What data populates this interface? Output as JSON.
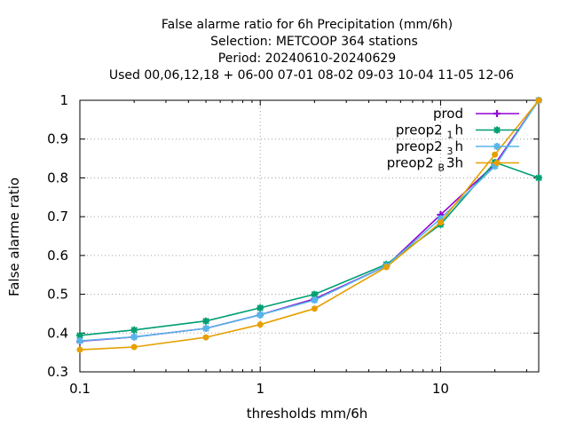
{
  "chart_data": {
    "type": "line",
    "title_lines": [
      "False alarme ratio  for 6h Precipitation (mm/6h)",
      "Selection: METCOOP    364 stations",
      "Period: 20240610-20240629",
      "Used  00,06,12,18 + 06-00 07-01 08-02 09-03 10-04 11-05 12-06"
    ],
    "xlabel": "thresholds mm/6h",
    "ylabel": "False alarme ratio",
    "x_scale": "log",
    "xlim": [
      0.1,
      35
    ],
    "ylim": [
      0.3,
      1.0
    ],
    "x_ticks": [
      0.1,
      1,
      10
    ],
    "x_tick_labels": [
      "0.1",
      "1",
      "10"
    ],
    "y_ticks": [
      0.3,
      0.4,
      0.5,
      0.6,
      0.7,
      0.8,
      0.9,
      1.0
    ],
    "y_tick_labels": [
      "0.3",
      "0.4",
      "0.5",
      "0.6",
      "0.7",
      "0.8",
      "0.9",
      "1"
    ],
    "grid": true,
    "legend_position": "top-right",
    "series": [
      {
        "name": "prod",
        "legend_text": "prod",
        "legend_sub": "",
        "legend_after": "",
        "color": "#9400d3",
        "marker": "plus",
        "x": [
          0.1,
          0.2,
          0.5,
          1,
          2,
          5,
          10,
          20,
          35
        ],
        "values": [
          0.379,
          0.39,
          0.412,
          0.447,
          0.488,
          0.573,
          0.705,
          0.835,
          1.0
        ]
      },
      {
        "name": "preop2 1 h",
        "legend_text": "preop2 ",
        "legend_sub": "1",
        "legend_after": "h",
        "color": "#009e73",
        "marker": "star",
        "x": [
          0.1,
          0.2,
          0.5,
          1,
          2,
          5,
          10,
          20,
          35
        ],
        "values": [
          0.394,
          0.408,
          0.431,
          0.465,
          0.5,
          0.577,
          0.68,
          0.84,
          0.8
        ]
      },
      {
        "name": "preop2 3 h",
        "legend_text": "preop2 ",
        "legend_sub": "3",
        "legend_after": "h",
        "color": "#56b4e9",
        "marker": "star",
        "x": [
          0.1,
          0.2,
          0.5,
          1,
          2,
          5,
          10,
          20,
          35
        ],
        "values": [
          0.38,
          0.39,
          0.412,
          0.447,
          0.485,
          0.573,
          0.695,
          0.83,
          1.0
        ]
      },
      {
        "name": "preop2 B 3h",
        "legend_text": "preop2 ",
        "legend_sub": "B",
        "legend_after": "3h",
        "color": "#e69f00",
        "marker": "circle",
        "x": [
          0.1,
          0.2,
          0.5,
          1,
          2,
          5,
          10,
          20,
          35
        ],
        "values": [
          0.357,
          0.364,
          0.389,
          0.422,
          0.463,
          0.57,
          0.685,
          0.86,
          1.0
        ]
      }
    ]
  }
}
